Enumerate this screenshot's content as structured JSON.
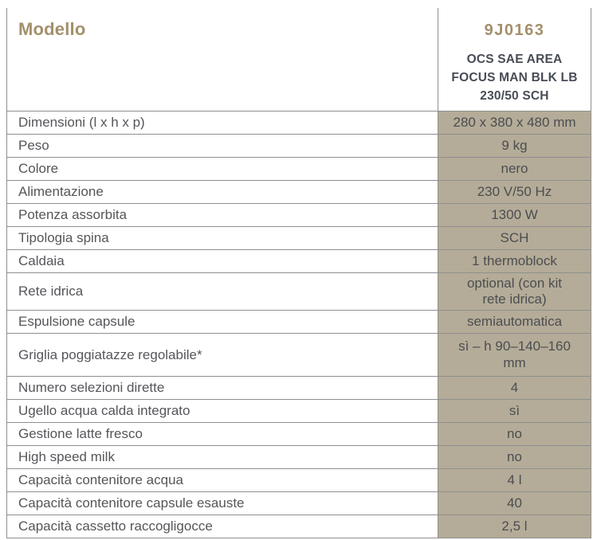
{
  "colors": {
    "accent_gold": "#a3906a",
    "value_cell_bg": "#b4ac98",
    "header_text": "#474c55",
    "label_text": "#55565a",
    "value_text": "#4c4d51",
    "border": "#8f8f8f"
  },
  "header": {
    "label": "Modello",
    "model_code": "9J0163",
    "model_name_lines": [
      "OCS SAE AREA",
      "FOCUS MAN BLK LB",
      "230/50 SCH"
    ]
  },
  "table": {
    "rows": [
      {
        "label": "Dimensioni (l x h x p)",
        "value": "280 x 380 x 480 mm"
      },
      {
        "label": "Peso",
        "value": "9 kg"
      },
      {
        "label": "Colore",
        "value": "nero"
      },
      {
        "label": "Alimentazione",
        "value": "230 V/50 Hz"
      },
      {
        "label": "Potenza assorbita",
        "value": "1300 W"
      },
      {
        "label": "Tipologia spina",
        "value": "SCH"
      },
      {
        "label": "Caldaia",
        "value": "1 thermoblock"
      },
      {
        "label": "Rete idrica",
        "value": "optional (con kit rete idrica)"
      },
      {
        "label": "Espulsione capsule",
        "value": "semiautomatica"
      },
      {
        "label": "Griglia poggiatazze regolabile*",
        "value": "sì – h 90–140–160 mm"
      },
      {
        "label": "Numero selezioni dirette",
        "value": "4"
      },
      {
        "label": "Ugello acqua calda integrato",
        "value": "sì"
      },
      {
        "label": "Gestione latte fresco",
        "value": "no"
      },
      {
        "label": "High speed milk",
        "value": "no"
      },
      {
        "label": "Capacità contenitore acqua",
        "value": "4 l"
      },
      {
        "label": "Capacità contenitore capsule esauste",
        "value": "40"
      },
      {
        "label": "Capacità cassetto raccogligocce",
        "value": "2,5 l"
      }
    ]
  }
}
